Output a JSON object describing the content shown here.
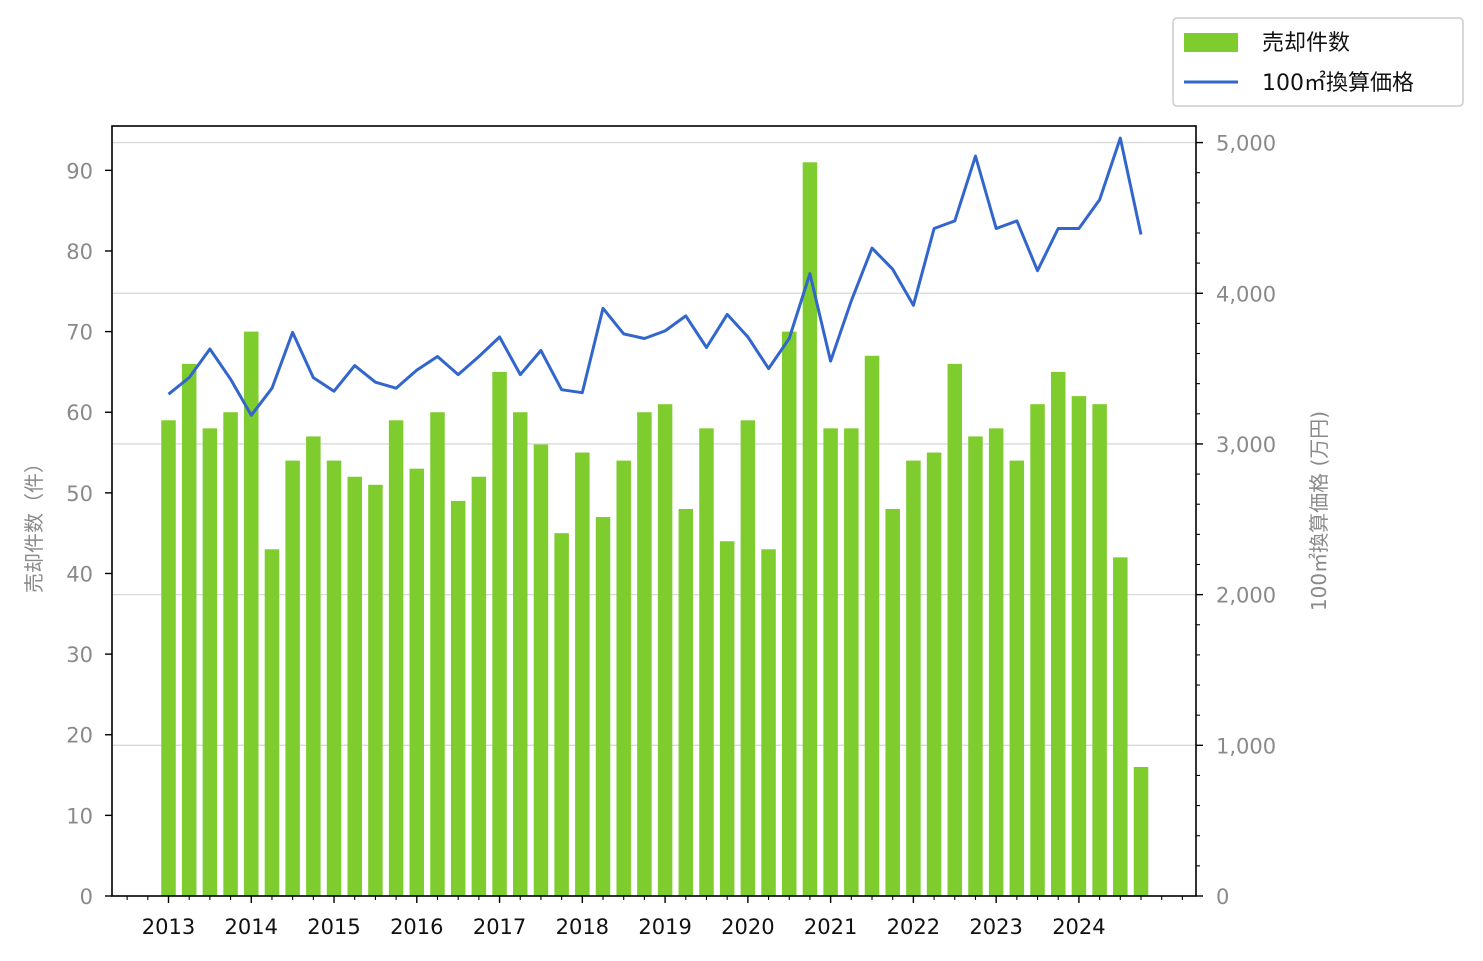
{
  "chart_data": {
    "type": "bar",
    "x": [
      "2013",
      "2013",
      "2013",
      "2013",
      "2014",
      "2014",
      "2014",
      "2014",
      "2015",
      "2015",
      "2015",
      "2015",
      "2016",
      "2016",
      "2016",
      "2016",
      "2017",
      "2017",
      "2017",
      "2017",
      "2018",
      "2018",
      "2018",
      "2018",
      "2019",
      "2019",
      "2019",
      "2019",
      "2020",
      "2020",
      "2020",
      "2020",
      "2021",
      "2021",
      "2021",
      "2021",
      "2022",
      "2022",
      "2022",
      "2022",
      "2023",
      "2023",
      "2023",
      "2023",
      "2024",
      "2024",
      "2024",
      "2024"
    ],
    "x_tick_labels": [
      "2013",
      "2014",
      "2015",
      "2016",
      "2017",
      "2018",
      "2019",
      "2020",
      "2021",
      "2022",
      "2023",
      "2024"
    ],
    "series": [
      {
        "name": "売却件数",
        "type": "bar",
        "axis": "left",
        "color": "#7fcc2f",
        "values": [
          59,
          66,
          58,
          60,
          70,
          43,
          54,
          57,
          54,
          52,
          51,
          59,
          53,
          60,
          49,
          52,
          65,
          60,
          56,
          45,
          55,
          47,
          54,
          60,
          61,
          48,
          58,
          44,
          59,
          43,
          70,
          91,
          58,
          58,
          67,
          48,
          54,
          55,
          66,
          57,
          58,
          54,
          61,
          65,
          62,
          61,
          42,
          16
        ]
      },
      {
        "name": "100㎡換算価格",
        "type": "line",
        "axis": "right",
        "color": "#3366cc",
        "values": [
          3330,
          3440,
          3630,
          3430,
          3190,
          3370,
          3740,
          3440,
          3350,
          3520,
          3410,
          3370,
          3490,
          3580,
          3460,
          3580,
          3710,
          3460,
          3620,
          3360,
          3340,
          3900,
          3730,
          3700,
          3750,
          3850,
          3640,
          3860,
          3710,
          3500,
          3700,
          4130,
          3550,
          3950,
          4300,
          4160,
          3920,
          4430,
          4480,
          4910,
          4430,
          4480,
          4150,
          4430,
          4430,
          4620,
          5030,
          4390
        ]
      }
    ],
    "y_left": {
      "label": "売却件数（件）",
      "ylim": [
        0,
        95.5
      ],
      "ticks": [
        "0",
        "10",
        "20",
        "30",
        "40",
        "50",
        "60",
        "70",
        "80",
        "90"
      ]
    },
    "y_right": {
      "label": "100㎡換算価格 (万円)",
      "ylim": [
        0,
        5110
      ],
      "ticks": [
        "0",
        "1,000",
        "2,000",
        "3,000",
        "4,000",
        "5,000"
      ]
    },
    "grid": "horizontal on right axis",
    "legend": {
      "placement": "top-right, outside plot",
      "entries": [
        "売却件数",
        "100㎡換算価格"
      ]
    },
    "colors": {
      "bar": "#7fcc2f",
      "line": "#3366cc",
      "tick_left": "#8a8a8a",
      "tick_right": "#8a8a8a",
      "grid": "#d9d9d9"
    }
  }
}
